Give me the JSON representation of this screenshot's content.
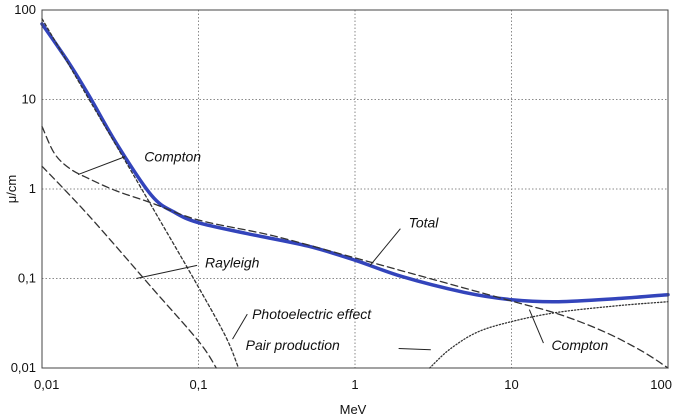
{
  "chart_data": {
    "type": "line",
    "title": "",
    "xlabel": "MeV",
    "ylabel": "μ/cm",
    "x_scale": "log",
    "y_scale": "log",
    "xlim": [
      0.01,
      100
    ],
    "ylim": [
      0.01,
      100
    ],
    "grid": true,
    "x_ticks": [
      {
        "value": 0.01,
        "label": "0,01"
      },
      {
        "value": 0.1,
        "label": "0,1"
      },
      {
        "value": 1,
        "label": "1"
      },
      {
        "value": 10,
        "label": "10"
      },
      {
        "value": 100,
        "label": "100"
      }
    ],
    "y_ticks": [
      {
        "value": 0.01,
        "label": "0,01"
      },
      {
        "value": 0.1,
        "label": "0,1"
      },
      {
        "value": 1,
        "label": "1"
      },
      {
        "value": 10,
        "label": "10"
      },
      {
        "value": 100,
        "label": "100"
      }
    ],
    "series": [
      {
        "name": "Total",
        "style": "solid",
        "color": "#3344bb",
        "points": [
          [
            0.01,
            70
          ],
          [
            0.015,
            25
          ],
          [
            0.02,
            11
          ],
          [
            0.03,
            3.2
          ],
          [
            0.05,
            0.85
          ],
          [
            0.07,
            0.55
          ],
          [
            0.1,
            0.42
          ],
          [
            0.2,
            0.32
          ],
          [
            0.5,
            0.23
          ],
          [
            1,
            0.16
          ],
          [
            2,
            0.105
          ],
          [
            5,
            0.07
          ],
          [
            10,
            0.058
          ],
          [
            20,
            0.055
          ],
          [
            50,
            0.06
          ],
          [
            100,
            0.066
          ]
        ]
      },
      {
        "name": "Compton",
        "style": "dashed",
        "color": "#333333",
        "points": [
          [
            0.01,
            5
          ],
          [
            0.012,
            2.5
          ],
          [
            0.015,
            1.7
          ],
          [
            0.02,
            1.3
          ],
          [
            0.03,
            0.95
          ],
          [
            0.05,
            0.7
          ],
          [
            0.1,
            0.45
          ],
          [
            0.3,
            0.3
          ],
          [
            1,
            0.17
          ],
          [
            3,
            0.1
          ],
          [
            10,
            0.056
          ],
          [
            20,
            0.04
          ],
          [
            40,
            0.025
          ],
          [
            70,
            0.015
          ],
          [
            100,
            0.01
          ]
        ]
      },
      {
        "name": "Rayleigh",
        "style": "dashed",
        "color": "#333333",
        "points": [
          [
            0.01,
            1.8
          ],
          [
            0.02,
            0.5
          ],
          [
            0.05,
            0.08
          ],
          [
            0.1,
            0.02
          ],
          [
            0.13,
            0.01
          ]
        ]
      },
      {
        "name": "Photoelectric effect",
        "style": "dotted-dash",
        "color": "#333333",
        "points": [
          [
            0.01,
            80
          ],
          [
            0.02,
            10
          ],
          [
            0.03,
            3.0
          ],
          [
            0.05,
            0.65
          ],
          [
            0.1,
            0.08
          ],
          [
            0.15,
            0.022
          ],
          [
            0.18,
            0.01
          ]
        ]
      },
      {
        "name": "Pair production",
        "style": "dotted",
        "color": "#333333",
        "points": [
          [
            3,
            0.01
          ],
          [
            4,
            0.016
          ],
          [
            6,
            0.025
          ],
          [
            10,
            0.033
          ],
          [
            20,
            0.042
          ],
          [
            50,
            0.05
          ],
          [
            100,
            0.055
          ]
        ]
      }
    ],
    "annotations": [
      {
        "text": "Compton",
        "x": 0.045,
        "y": 2.3
      },
      {
        "text": "Total",
        "x": 2.2,
        "y": 0.42
      },
      {
        "text": "Rayleigh",
        "x": 0.11,
        "y": 0.15
      },
      {
        "text": "Photoelectric effect",
        "x": 0.22,
        "y": 0.04
      },
      {
        "text": "Pair production",
        "x": 0.2,
        "y": 0.018
      },
      {
        "text": "Compton",
        "x": 18,
        "y": 0.018
      }
    ]
  }
}
